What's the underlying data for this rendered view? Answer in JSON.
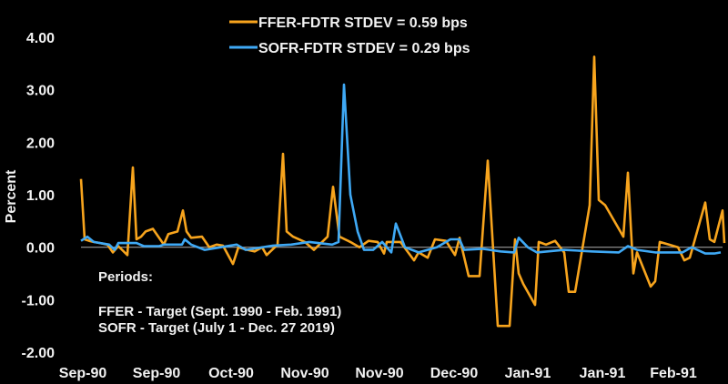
{
  "chart_data": {
    "type": "line",
    "title": "",
    "xlabel": "",
    "ylabel": "Percent",
    "ylim": [
      -2,
      4
    ],
    "xlim": [
      0,
      141
    ],
    "grid": false,
    "legend_placement": "top",
    "y_ticks": [
      "4.00",
      "3.00",
      "2.00",
      "1.00",
      "0.00",
      "-1.00",
      "-2.00"
    ],
    "y_tick_values": [
      4,
      3,
      2,
      1,
      0,
      -1,
      -2
    ],
    "x_ticks": [
      {
        "label": "Sep-90",
        "x": 0
      },
      {
        "label": "Sep-90",
        "x": 16.2
      },
      {
        "label": "Oct-90",
        "x": 32.6
      },
      {
        "label": "Nov-90",
        "x": 48.8
      },
      {
        "label": "Nov-90",
        "x": 65.2
      },
      {
        "label": "Dec-90",
        "x": 81.6
      },
      {
        "label": "Jan-91",
        "x": 97.8
      },
      {
        "label": "Jan-91",
        "x": 114.2
      },
      {
        "label": "Feb-91",
        "x": 129.8
      }
    ],
    "zero_line_color": "#9a9a9a",
    "series": [
      {
        "name": "FFER-FDTR STDEV = 0.59 bps",
        "color": "#f7a41d",
        "points": [
          [
            0,
            1.3
          ],
          [
            0.8,
            0.15
          ],
          [
            1.8,
            0.12
          ],
          [
            2.8,
            0.1
          ],
          [
            4.2,
            0.08
          ],
          [
            5.8,
            0.05
          ],
          [
            7,
            -0.1
          ],
          [
            8.2,
            0.02
          ],
          [
            10.2,
            -0.15
          ],
          [
            11.4,
            1.52
          ],
          [
            12.2,
            0.15
          ],
          [
            13.2,
            0.2
          ],
          [
            14.2,
            0.3
          ],
          [
            15.8,
            0.35
          ],
          [
            17,
            0.2
          ],
          [
            18.2,
            0.05
          ],
          [
            19.2,
            0.25
          ],
          [
            21.2,
            0.3
          ],
          [
            22.4,
            0.7
          ],
          [
            23.2,
            0.3
          ],
          [
            24.2,
            0.18
          ],
          [
            26.6,
            0.2
          ],
          [
            28.2,
            0
          ],
          [
            29.8,
            0.05
          ],
          [
            31.2,
            0.03
          ],
          [
            33.4,
            -0.32
          ],
          [
            34.6,
            0
          ],
          [
            36.6,
            -0.05
          ],
          [
            38.2,
            -0.08
          ],
          [
            39.8,
            0
          ],
          [
            40.8,
            -0.15
          ],
          [
            43.2,
            0.05
          ],
          [
            44.4,
            1.78
          ],
          [
            45.2,
            0.3
          ],
          [
            46.6,
            0.2
          ],
          [
            49.2,
            0.1
          ],
          [
            51.2,
            -0.05
          ],
          [
            54.2,
            0.2
          ],
          [
            55.4,
            1.15
          ],
          [
            56.8,
            0.2
          ],
          [
            59.2,
            0.1
          ],
          [
            61.2,
            0
          ],
          [
            63.2,
            0.12
          ],
          [
            65.2,
            0.1
          ],
          [
            66.6,
            -0.12
          ],
          [
            67.2,
            0.1
          ],
          [
            70.2,
            0.1
          ],
          [
            73.2,
            -0.25
          ],
          [
            74.2,
            -0.1
          ],
          [
            76.2,
            -0.2
          ],
          [
            77.8,
            0.15
          ],
          [
            80.2,
            0.12
          ],
          [
            82.2,
            -0.15
          ],
          [
            83.2,
            0.18
          ],
          [
            85.2,
            -0.55
          ],
          [
            87.6,
            -0.55
          ],
          [
            89.4,
            1.65
          ],
          [
            91.6,
            -1.5
          ],
          [
            94.2,
            -1.5
          ],
          [
            95.4,
            0.15
          ],
          [
            96.2,
            -0.5
          ],
          [
            97.2,
            -0.7
          ],
          [
            99.8,
            -1.1
          ],
          [
            100.6,
            0.1
          ],
          [
            102.2,
            0.05
          ],
          [
            104.2,
            0.12
          ],
          [
            106.2,
            -0.1
          ],
          [
            107.2,
            -0.85
          ],
          [
            108.6,
            -0.85
          ],
          [
            111.8,
            0.8
          ],
          [
            112.8,
            3.63
          ],
          [
            113.8,
            0.9
          ],
          [
            115.2,
            0.8
          ],
          [
            119.2,
            0.2
          ],
          [
            120.2,
            1.42
          ],
          [
            121.4,
            -0.5
          ],
          [
            122.2,
            -0.1
          ],
          [
            125.2,
            -0.75
          ],
          [
            126.2,
            -0.65
          ],
          [
            127.2,
            0.1
          ],
          [
            129.2,
            0.05
          ],
          [
            131.2,
            0
          ],
          [
            132.6,
            -0.25
          ],
          [
            133.8,
            -0.2
          ],
          [
            137.2,
            0.85
          ],
          [
            138.2,
            0.15
          ],
          [
            139.2,
            0.1
          ],
          [
            141,
            0.7
          ],
          [
            141.4,
            0.08
          ]
        ]
      },
      {
        "name": "SOFR-FDTR STDEV = 0.29 bps",
        "color": "#3fa9f5",
        "points": [
          [
            0,
            0.12
          ],
          [
            1.4,
            0.2
          ],
          [
            2.8,
            0.1
          ],
          [
            6.2,
            0.05
          ],
          [
            7.4,
            -0.05
          ],
          [
            8.2,
            0.08
          ],
          [
            12.2,
            0.08
          ],
          [
            13.8,
            0.02
          ],
          [
            17.2,
            0.02
          ],
          [
            18.2,
            0.05
          ],
          [
            22.2,
            0.05
          ],
          [
            22.8,
            0.15
          ],
          [
            24.2,
            0.05
          ],
          [
            27.2,
            -0.05
          ],
          [
            34.2,
            0.05
          ],
          [
            36.2,
            -0.05
          ],
          [
            42.2,
            0.03
          ],
          [
            46.2,
            0.05
          ],
          [
            50.2,
            0.1
          ],
          [
            55.2,
            0.05
          ],
          [
            56.6,
            0.1
          ],
          [
            57.8,
            3.1
          ],
          [
            59.2,
            1.0
          ],
          [
            60.8,
            0.3
          ],
          [
            62.2,
            -0.05
          ],
          [
            64.2,
            -0.05
          ],
          [
            66.2,
            0.1
          ],
          [
            68.2,
            -0.1
          ],
          [
            69.2,
            0.45
          ],
          [
            71.2,
            0
          ],
          [
            74.2,
            -0.1
          ],
          [
            78.2,
            0
          ],
          [
            81.2,
            0.15
          ],
          [
            83.2,
            0.15
          ],
          [
            84.2,
            -0.05
          ],
          [
            88.2,
            -0.03
          ],
          [
            92.2,
            -0.08
          ],
          [
            95.2,
            -0.1
          ],
          [
            96.2,
            0.18
          ],
          [
            98.2,
            0
          ],
          [
            100.2,
            -0.1
          ],
          [
            106.2,
            -0.05
          ],
          [
            112.2,
            -0.08
          ],
          [
            118.2,
            -0.1
          ],
          [
            120.2,
            0.02
          ],
          [
            122.2,
            -0.05
          ],
          [
            126.2,
            -0.1
          ],
          [
            130.2,
            -0.1
          ],
          [
            132.2,
            -0.1
          ],
          [
            134.2,
            0
          ],
          [
            137.2,
            -0.12
          ],
          [
            139.2,
            -0.12
          ],
          [
            140.6,
            -0.1
          ]
        ]
      }
    ],
    "annotations": {
      "heading": "Periods:",
      "line1": "FFER - Target (Sept. 1990 - Feb. 1991)",
      "line2": "SOFR - Target (July 1 - Dec. 27 2019)"
    }
  }
}
